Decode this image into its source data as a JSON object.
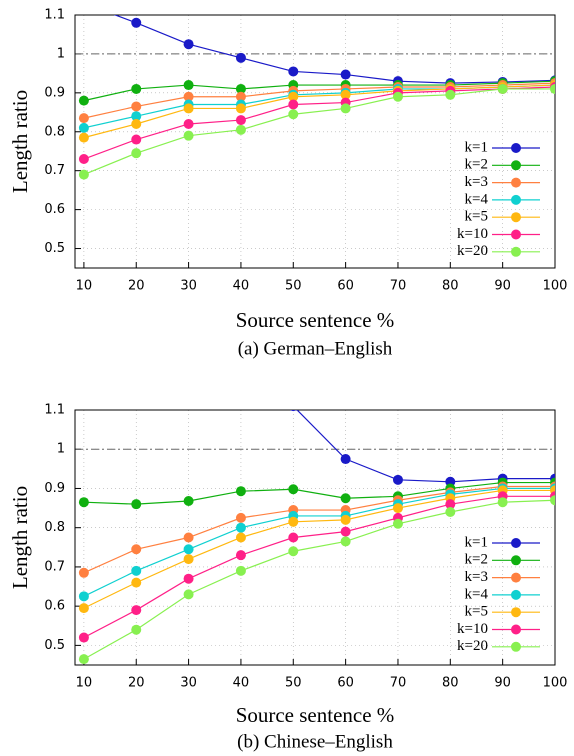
{
  "chart_data": [
    {
      "type": "line",
      "caption": "(a) German–English",
      "x_label": "Source sentence %",
      "y_label": "Length ratio",
      "x": [
        10,
        20,
        30,
        40,
        50,
        60,
        70,
        80,
        90,
        100
      ],
      "xlim": [
        8.3,
        100
      ],
      "xticks": [
        10,
        20,
        30,
        40,
        50,
        60,
        70,
        80,
        90,
        100
      ],
      "ylim": [
        0.45,
        1.1
      ],
      "yticks": [
        0.5,
        0.6,
        0.7,
        0.8,
        0.9,
        1,
        1.1
      ],
      "grid": true,
      "hline": 1,
      "legend": "right",
      "series": [
        {
          "name": "k=1",
          "color": "#1a1ac8",
          "values": [
            1.13,
            1.08,
            1.025,
            0.99,
            0.955,
            0.947,
            0.93,
            0.925,
            0.928,
            0.932
          ]
        },
        {
          "name": "k=2",
          "color": "#10b010",
          "values": [
            0.88,
            0.91,
            0.92,
            0.91,
            0.92,
            0.92,
            0.92,
            0.92,
            0.925,
            0.93
          ]
        },
        {
          "name": "k=3",
          "color": "#ff8040",
          "values": [
            0.835,
            0.865,
            0.89,
            0.89,
            0.905,
            0.91,
            0.915,
            0.915,
            0.92,
            0.925
          ]
        },
        {
          "name": "k=4",
          "color": "#10d0d0",
          "values": [
            0.81,
            0.84,
            0.87,
            0.87,
            0.895,
            0.9,
            0.91,
            0.91,
            0.915,
            0.92
          ]
        },
        {
          "name": "k=5",
          "color": "#ffb810",
          "values": [
            0.785,
            0.82,
            0.86,
            0.86,
            0.89,
            0.895,
            0.905,
            0.91,
            0.915,
            0.92
          ]
        },
        {
          "name": "k=10",
          "color": "#ff2088",
          "values": [
            0.73,
            0.78,
            0.82,
            0.83,
            0.87,
            0.875,
            0.9,
            0.905,
            0.91,
            0.915
          ]
        },
        {
          "name": "k=20",
          "color": "#88f050",
          "values": [
            0.69,
            0.745,
            0.79,
            0.805,
            0.845,
            0.86,
            0.89,
            0.895,
            0.91,
            0.91
          ]
        }
      ]
    },
    {
      "type": "line",
      "caption": "(b) Chinese–English",
      "x_label": "Source sentence %",
      "y_label": "Length ratio",
      "x": [
        10,
        20,
        30,
        40,
        50,
        60,
        70,
        80,
        90,
        100
      ],
      "xlim": [
        8.3,
        100
      ],
      "xticks": [
        10,
        20,
        30,
        40,
        50,
        60,
        70,
        80,
        90,
        100
      ],
      "ylim": [
        0.45,
        1.1
      ],
      "yticks": [
        0.5,
        0.6,
        0.7,
        0.8,
        0.9,
        1,
        1.1
      ],
      "grid": true,
      "hline": 1,
      "legend": "right",
      "series": [
        {
          "name": "k=1",
          "color": "#1a1ac8",
          "values": [
            null,
            null,
            null,
            null,
            1.11,
            0.975,
            0.922,
            0.917,
            0.925,
            0.925
          ]
        },
        {
          "name": "k=2",
          "color": "#10b010",
          "values": [
            0.865,
            0.86,
            0.868,
            0.893,
            0.898,
            0.875,
            0.88,
            0.9,
            0.915,
            0.915
          ]
        },
        {
          "name": "k=3",
          "color": "#ff8040",
          "values": [
            0.685,
            0.745,
            0.775,
            0.825,
            0.845,
            0.845,
            0.87,
            0.89,
            0.905,
            0.905
          ]
        },
        {
          "name": "k=4",
          "color": "#10d0d0",
          "values": [
            0.625,
            0.69,
            0.745,
            0.8,
            0.83,
            0.83,
            0.86,
            0.885,
            0.9,
            0.9
          ]
        },
        {
          "name": "k=5",
          "color": "#ffb810",
          "values": [
            0.595,
            0.66,
            0.72,
            0.775,
            0.815,
            0.82,
            0.85,
            0.875,
            0.895,
            0.895
          ]
        },
        {
          "name": "k=10",
          "color": "#ff2088",
          "values": [
            0.52,
            0.59,
            0.67,
            0.73,
            0.775,
            0.79,
            0.825,
            0.86,
            0.88,
            0.88
          ]
        },
        {
          "name": "k=20",
          "color": "#88f050",
          "values": [
            0.465,
            0.54,
            0.63,
            0.69,
            0.74,
            0.765,
            0.81,
            0.84,
            0.865,
            0.87
          ]
        }
      ]
    }
  ]
}
